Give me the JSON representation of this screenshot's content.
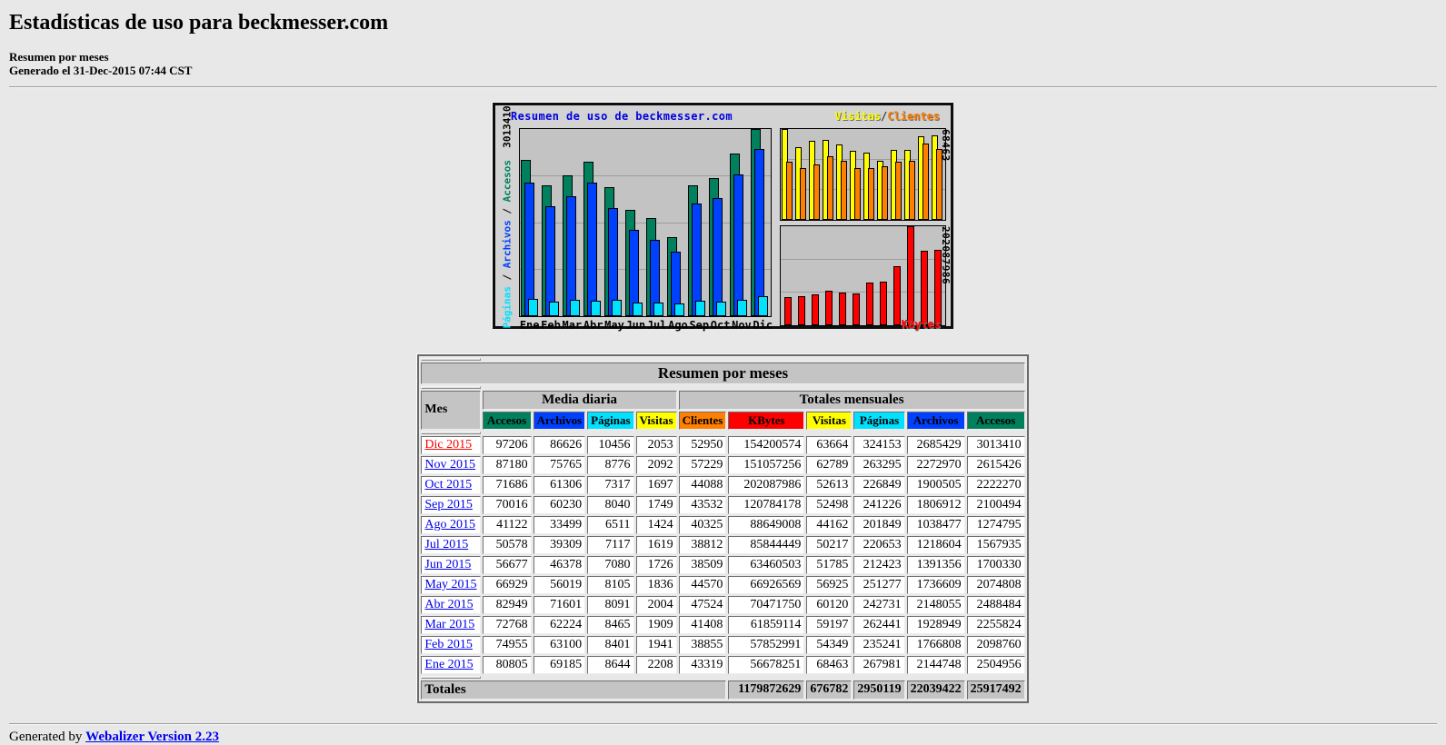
{
  "page": {
    "title": "Estadísticas de uso para beckmesser.com",
    "subtitle_line1": "Resumen por meses",
    "subtitle_line2": "Generado el 31-Dec-2015 07:44 CST",
    "footer_prefix": "Generated by",
    "footer_link": "Webalizer Version 2.23"
  },
  "colors": {
    "accesos": "#00805C",
    "archivos": "#0040FF",
    "paginas": "#00E0FF",
    "visitas": "#FFFF00",
    "clientes": "#FF8000",
    "kbytes": "#FF0000",
    "page_bg": "#E8E8E8",
    "panel_bg": "#C3C3C3",
    "header_bg": "#C4C4C4",
    "link": "#0000EE",
    "visited_link": "#FF0000",
    "chart_title": "#0000E0"
  },
  "chart_data": {
    "type": "bar",
    "title": "Resumen de uso de beckmesser.com",
    "legend": {
      "visitas": "Visitas",
      "sep": "/",
      "clientes": "Clientes"
    },
    "axis_left": {
      "paginas": "Páginas",
      "sep1": " / ",
      "archivos": "Archivos",
      "sep2": " / ",
      "accesos": "Accesos",
      "max_label": "3013410"
    },
    "axis_right_top_max_label": "68463",
    "axis_right_bottom_max_label": "202087986",
    "kbytes_label": "KBytes",
    "categories": [
      "Ene",
      "Feb",
      "Mar",
      "Abr",
      "May",
      "Jun",
      "Jul",
      "Ago",
      "Sep",
      "Oct",
      "Nov",
      "Dic"
    ],
    "panel_maxes": {
      "main": 3013410,
      "visits": 68463,
      "kbytes": 202087986
    },
    "series": [
      {
        "name": "Accesos",
        "color": "#00805C",
        "panel": "main",
        "values": [
          2504956,
          2098760,
          2255824,
          2488484,
          2074808,
          1700330,
          1567935,
          1274795,
          2100494,
          2222270,
          2615426,
          3013410
        ]
      },
      {
        "name": "Archivos",
        "color": "#0040FF",
        "panel": "main",
        "values": [
          2144748,
          1766808,
          1928949,
          2148055,
          1736609,
          1391356,
          1218604,
          1038477,
          1806912,
          1900505,
          2272970,
          2685429
        ]
      },
      {
        "name": "Páginas",
        "color": "#00E0FF",
        "panel": "main",
        "values": [
          267981,
          235241,
          262441,
          242731,
          251277,
          212423,
          220653,
          201849,
          241226,
          226849,
          263295,
          324153
        ]
      },
      {
        "name": "Visitas",
        "color": "#FFFF00",
        "panel": "visits",
        "values": [
          68463,
          54349,
          59197,
          60120,
          56925,
          51785,
          50217,
          44162,
          52498,
          52613,
          62789,
          63664
        ]
      },
      {
        "name": "Clientes",
        "color": "#FF8000",
        "panel": "visits",
        "values": [
          43319,
          38855,
          41408,
          47524,
          44570,
          38509,
          38812,
          40325,
          43532,
          44088,
          57229,
          52950
        ]
      },
      {
        "name": "KBytes",
        "color": "#FF0000",
        "panel": "kbytes",
        "values": [
          56678251,
          57852991,
          61859114,
          70471750,
          66926569,
          63460503,
          85844449,
          88649008,
          120784178,
          202087986,
          151057256,
          154200574
        ]
      }
    ],
    "grid": "on",
    "legend_position": "top-right"
  },
  "table": {
    "title": "Resumen por meses",
    "col_mes": "Mes",
    "group_daily": "Media diaria",
    "group_monthly": "Totales mensuales",
    "daily_headers": [
      {
        "label": "Accesos",
        "color": "#00805C"
      },
      {
        "label": "Archivos",
        "color": "#0040FF"
      },
      {
        "label": "Páginas",
        "color": "#00E0FF"
      },
      {
        "label": "Visitas",
        "color": "#FFFF00"
      }
    ],
    "monthly_headers": [
      {
        "label": "Clientes",
        "color": "#FF8000"
      },
      {
        "label": "KBytes",
        "color": "#FF0000"
      },
      {
        "label": "Visitas",
        "color": "#FFFF00"
      },
      {
        "label": "Páginas",
        "color": "#00E0FF"
      },
      {
        "label": "Archivos",
        "color": "#0040FF"
      },
      {
        "label": "Accesos",
        "color": "#00805C"
      }
    ],
    "rows": [
      {
        "mes": "Dic 2015",
        "visited": true,
        "daily": [
          97206,
          86626,
          10456,
          2053
        ],
        "monthly": [
          52950,
          154200574,
          63664,
          324153,
          2685429,
          3013410
        ]
      },
      {
        "mes": "Nov 2015",
        "visited": false,
        "daily": [
          87180,
          75765,
          8776,
          2092
        ],
        "monthly": [
          57229,
          151057256,
          62789,
          263295,
          2272970,
          2615426
        ]
      },
      {
        "mes": "Oct 2015",
        "visited": false,
        "daily": [
          71686,
          61306,
          7317,
          1697
        ],
        "monthly": [
          44088,
          202087986,
          52613,
          226849,
          1900505,
          2222270
        ]
      },
      {
        "mes": "Sep 2015",
        "visited": false,
        "daily": [
          70016,
          60230,
          8040,
          1749
        ],
        "monthly": [
          43532,
          120784178,
          52498,
          241226,
          1806912,
          2100494
        ]
      },
      {
        "mes": "Ago 2015",
        "visited": false,
        "daily": [
          41122,
          33499,
          6511,
          1424
        ],
        "monthly": [
          40325,
          88649008,
          44162,
          201849,
          1038477,
          1274795
        ]
      },
      {
        "mes": "Jul 2015",
        "visited": false,
        "daily": [
          50578,
          39309,
          7117,
          1619
        ],
        "monthly": [
          38812,
          85844449,
          50217,
          220653,
          1218604,
          1567935
        ]
      },
      {
        "mes": "Jun 2015",
        "visited": false,
        "daily": [
          56677,
          46378,
          7080,
          1726
        ],
        "monthly": [
          38509,
          63460503,
          51785,
          212423,
          1391356,
          1700330
        ]
      },
      {
        "mes": "May 2015",
        "visited": false,
        "daily": [
          66929,
          56019,
          8105,
          1836
        ],
        "monthly": [
          44570,
          66926569,
          56925,
          251277,
          1736609,
          2074808
        ]
      },
      {
        "mes": "Abr 2015",
        "visited": false,
        "daily": [
          82949,
          71601,
          8091,
          2004
        ],
        "monthly": [
          47524,
          70471750,
          60120,
          242731,
          2148055,
          2488484
        ]
      },
      {
        "mes": "Mar 2015",
        "visited": false,
        "daily": [
          72768,
          62224,
          8465,
          1909
        ],
        "monthly": [
          41408,
          61859114,
          59197,
          262441,
          1928949,
          2255824
        ]
      },
      {
        "mes": "Feb 2015",
        "visited": false,
        "daily": [
          74955,
          63100,
          8401,
          1941
        ],
        "monthly": [
          38855,
          57852991,
          54349,
          235241,
          1766808,
          2098760
        ]
      },
      {
        "mes": "Ene 2015",
        "visited": false,
        "daily": [
          80805,
          69185,
          8644,
          2208
        ],
        "monthly": [
          43319,
          56678251,
          68463,
          267981,
          2144748,
          2504956
        ]
      }
    ],
    "totals_label": "Totales",
    "totals": [
      1179872629,
      676782,
      2950119,
      22039422,
      25917492
    ]
  }
}
